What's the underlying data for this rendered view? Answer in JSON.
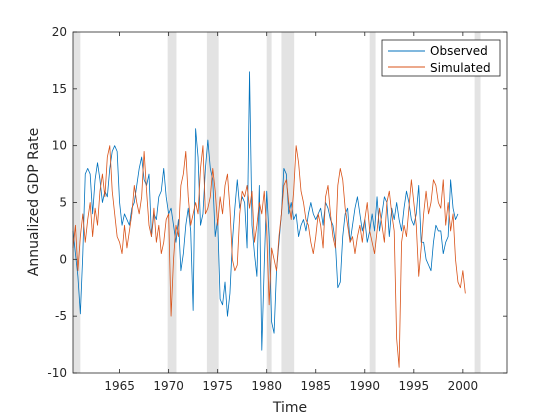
{
  "chart_data": {
    "type": "line",
    "title": "",
    "xlabel": "Time",
    "ylabel": "Annualized GDP Rate",
    "xlim": [
      1960.25,
      2004.5
    ],
    "ylim": [
      -10,
      20
    ],
    "x_ticks": [
      1965,
      1970,
      1975,
      1980,
      1985,
      1990,
      1995,
      2000
    ],
    "y_ticks": [
      -10,
      -5,
      0,
      5,
      10,
      15,
      20
    ],
    "grid": false,
    "legend_position": "top-right",
    "recessions": [
      [
        1960.25,
        1961.0
      ],
      [
        1969.9,
        1970.8
      ],
      [
        1973.9,
        1975.1
      ],
      [
        1980.0,
        1980.5
      ],
      [
        1981.5,
        1982.8
      ],
      [
        1990.5,
        1991.1
      ],
      [
        2001.2,
        2001.8
      ]
    ],
    "x_start": 1960.25,
    "x_step": 0.25,
    "series": [
      {
        "name": "Observed",
        "color": "#0072BD",
        "values": [
          2.5,
          0.5,
          -1.5,
          -4.8,
          0.5,
          7.5,
          8.0,
          7.5,
          4.0,
          7.0,
          8.5,
          7.0,
          5.0,
          6.0,
          5.5,
          8.0,
          9.5,
          10.0,
          9.5,
          5.0,
          3.0,
          4.0,
          3.5,
          3.0,
          4.5,
          5.0,
          6.5,
          8.0,
          9.0,
          7.0,
          6.5,
          7.5,
          2.0,
          4.0,
          3.5,
          5.5,
          6.0,
          8.0,
          5.5,
          4.0,
          4.5,
          3.0,
          1.5,
          3.5,
          -1.0,
          0.5,
          3.0,
          4.5,
          2.5,
          -4.5,
          11.5,
          9.0,
          3.0,
          4.0,
          8.0,
          10.5,
          8.0,
          7.0,
          2.0,
          3.5,
          -3.5,
          -4.0,
          -2.0,
          -5.0,
          -3.0,
          1.5,
          4.5,
          7.0,
          4.5,
          5.5,
          5.0,
          1.0,
          16.5,
          3.0,
          0.5,
          -1.5,
          6.5,
          -8.0,
          -0.5,
          6.0,
          2.0,
          -5.5,
          -6.5,
          -1.0,
          1.5,
          4.0,
          8.0,
          7.5,
          4.0,
          5.0,
          3.5,
          4.0,
          2.0,
          3.0,
          3.5,
          2.5,
          4.0,
          5.0,
          4.0,
          3.5,
          4.0,
          4.5,
          3.0,
          5.0,
          4.5,
          3.5,
          3.0,
          1.5,
          -2.5,
          -2.0,
          2.0,
          4.0,
          4.5,
          1.5,
          3.0,
          4.5,
          5.5,
          4.0,
          2.5,
          3.5,
          1.5,
          2.5,
          4.0,
          2.5,
          5.5,
          2.5,
          4.0,
          5.5,
          5.0,
          2.0,
          4.5,
          3.5,
          5.0,
          3.5,
          2.5,
          4.5,
          6.0,
          5.0,
          3.5,
          3.0,
          4.0,
          6.5,
          1.5,
          1.5,
          0.0,
          -0.5,
          -1.0,
          1.5,
          3.0,
          2.5,
          2.5,
          0.5,
          1.5,
          2.0,
          7.0,
          4.5,
          3.5,
          4.0
        ]
      },
      {
        "name": "Simulated",
        "color": "#D95319",
        "values": [
          1.0,
          3.0,
          -1.0,
          2.0,
          4.0,
          1.5,
          3.5,
          5.0,
          2.0,
          4.5,
          3.0,
          6.0,
          7.5,
          5.5,
          9.0,
          10.0,
          6.0,
          4.0,
          2.0,
          1.5,
          0.5,
          3.0,
          1.0,
          2.5,
          4.0,
          6.5,
          5.0,
          4.0,
          5.5,
          9.5,
          6.0,
          3.0,
          2.0,
          4.5,
          1.5,
          3.0,
          0.5,
          1.5,
          3.5,
          4.0,
          -5.0,
          0.0,
          3.0,
          2.0,
          6.5,
          7.5,
          9.5,
          5.5,
          3.0,
          4.0,
          5.0,
          4.0,
          8.0,
          10.0,
          4.0,
          4.5,
          5.5,
          8.0,
          6.0,
          3.0,
          5.5,
          4.0,
          6.5,
          7.5,
          4.5,
          0.0,
          -1.0,
          -0.5,
          4.0,
          6.0,
          5.5,
          6.5,
          4.5,
          6.0,
          1.5,
          3.0,
          5.0,
          4.0,
          6.0,
          2.5,
          -4.0,
          1.0,
          0.0,
          -1.0,
          2.0,
          4.0,
          6.5,
          7.0,
          5.0,
          3.5,
          6.0,
          10.0,
          8.5,
          6.0,
          5.0,
          3.5,
          3.0,
          1.5,
          0.5,
          2.0,
          4.0,
          3.0,
          1.0,
          5.5,
          6.5,
          4.0,
          2.0,
          1.0,
          6.5,
          8.0,
          7.0,
          4.5,
          3.0,
          1.5,
          2.0,
          0.5,
          2.0,
          3.0,
          1.5,
          3.5,
          5.0,
          2.5,
          1.5,
          0.5,
          2.5,
          4.5,
          3.0,
          1.5,
          5.0,
          6.0,
          4.0,
          2.5,
          -7.0,
          -9.5,
          1.5,
          3.0,
          2.0,
          4.5,
          7.0,
          5.0,
          3.0,
          -1.5,
          1.0,
          4.0,
          6.0,
          4.0,
          5.0,
          7.0,
          6.5,
          5.0,
          4.5,
          7.0,
          3.0,
          5.0,
          2.5,
          4.0,
          0.0,
          -2.0,
          -2.5,
          -1.0,
          -3.0
        ]
      }
    ]
  }
}
